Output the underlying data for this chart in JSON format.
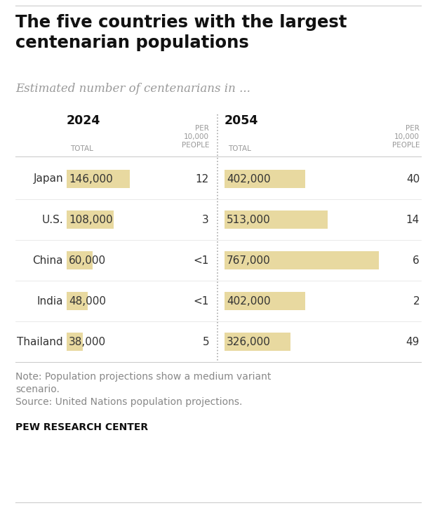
{
  "title": "The five countries with the largest\ncentenarian populations",
  "subtitle": "Estimated number of centenarians in ...",
  "countries": [
    "Japan",
    "U.S.",
    "China",
    "India",
    "Thailand"
  ],
  "total_2024": [
    146000,
    108000,
    60000,
    48000,
    38000
  ],
  "per10k_2024": [
    "12",
    "3",
    "<1",
    "<1",
    "5"
  ],
  "total_2054": [
    402000,
    513000,
    767000,
    402000,
    326000
  ],
  "per10k_2054": [
    "40",
    "14",
    "6",
    "2",
    "49"
  ],
  "total_2024_labels": [
    "146,000",
    "108,000",
    "60,000",
    "48,000",
    "38,000"
  ],
  "total_2054_labels": [
    "402,000",
    "513,000",
    "767,000",
    "402,000",
    "326,000"
  ],
  "bar_color": "#e8d9a0",
  "max_bar_2024": 146000,
  "max_bar_2054": 767000,
  "note_line1": "Note: Population projections show a medium variant",
  "note_line2": "scenario.",
  "note_line3": "Source: United Nations population projections.",
  "footer": "PEW RESEARCH CENTER",
  "bg_color": "#ffffff",
  "title_color": "#111111",
  "subtitle_color": "#999999",
  "data_color": "#333333",
  "header_color": "#999999",
  "line_color": "#cccccc",
  "note_color": "#888888"
}
